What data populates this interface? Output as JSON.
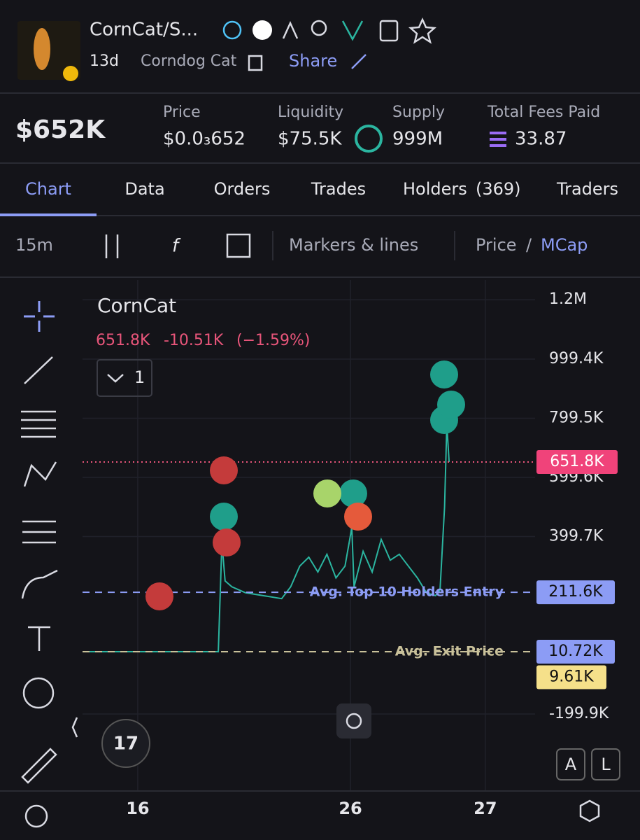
{
  "header": {
    "title": "CornCat/S...",
    "age": "13d",
    "name": "Corndog Cat",
    "share": "Share"
  },
  "stats": {
    "market_cap": "$652K",
    "items": [
      {
        "label": "Price",
        "value": "$0.0₃652"
      },
      {
        "label": "Liquidity",
        "value": "$75.5K"
      },
      {
        "label": "Supply",
        "value": "999M"
      },
      {
        "label": "Total Fees Paid",
        "value": "33.87"
      }
    ]
  },
  "tabs": [
    {
      "label": "Chart"
    },
    {
      "label": "Data"
    },
    {
      "label": "Orders"
    },
    {
      "label": "Trades"
    },
    {
      "label": "Holders",
      "count": "(369)"
    },
    {
      "label": "Traders"
    }
  ],
  "toolbar": {
    "interval": "15m",
    "markers": "Markers & lines",
    "price": "Price",
    "separator": "/",
    "mcap": "MCap"
  },
  "chart_data": {
    "type": "line",
    "title": "CornCat",
    "legend": {
      "last": "651.8K",
      "change": "-10.51K",
      "percent": "(−1.59%)"
    },
    "pane": "1",
    "color": "#2bb5a0",
    "x": [
      0,
      30,
      30.8,
      31.5,
      33,
      36,
      40,
      44,
      46,
      48,
      50,
      52,
      54,
      56,
      58,
      59.5,
      60,
      62,
      64,
      66,
      68,
      70,
      72,
      74,
      76,
      78,
      79,
      80,
      80.5,
      81
    ],
    "values": [
      10720,
      10720,
      380000,
      250000,
      230000,
      210000,
      200000,
      190000,
      230000,
      300000,
      330000,
      280000,
      340000,
      260000,
      300000,
      430000,
      230000,
      350000,
      280000,
      390000,
      320000,
      340000,
      300000,
      260000,
      210000,
      200000,
      220000,
      500000,
      780000,
      651800
    ],
    "xlim": [
      0,
      100
    ],
    "ylim": [
      -460000,
      1266700
    ],
    "xticks": [
      {
        "value": 12.2,
        "label": "16"
      },
      {
        "value": 59.2,
        "label": "26"
      },
      {
        "value": 89.0,
        "label": "27"
      }
    ],
    "yticks": [
      {
        "value": 1200000,
        "label": "1.2M"
      },
      {
        "value": 999400,
        "label": "999.4K"
      },
      {
        "value": 799500,
        "label": "799.5K"
      },
      {
        "value": 599600,
        "label": "599.6K"
      },
      {
        "value": 399700,
        "label": "399.7K"
      },
      {
        "value": -199900,
        "label": "-199.9K"
      }
    ],
    "grid": true,
    "last_price": {
      "value": 651800,
      "label": "651.8K"
    },
    "lines": [
      {
        "name": "Avg. Top 10 Holders Entry",
        "value": 211600,
        "label": "211.6K"
      },
      {
        "name": "Avg. Exit Price",
        "value": 10720,
        "label": "10.72K"
      }
    ],
    "extra_label": {
      "value": 9610,
      "label": "9.61K"
    }
  },
  "buttons": [
    "A",
    "L"
  ]
}
